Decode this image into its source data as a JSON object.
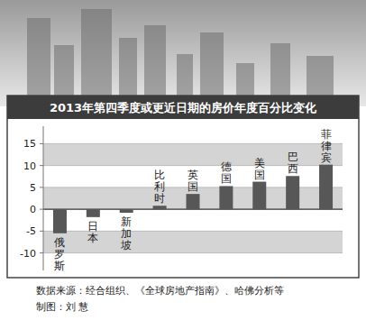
{
  "chart_data": {
    "type": "bar",
    "title": "2013年第四季度或更近日期的房价年度百分比变化",
    "categories": [
      "俄罗斯",
      "日本",
      "新加坡",
      "比利时",
      "英国",
      "德国",
      "美国",
      "巴西",
      "菲律宾"
    ],
    "values": [
      -5.5,
      -1.8,
      -0.8,
      0.8,
      3.5,
      5.3,
      6.3,
      7.6,
      10.2
    ],
    "color": "#575757",
    "ylim": [
      -14,
      19
    ],
    "yticks": [
      -10,
      -5,
      0,
      5,
      10,
      15
    ],
    "grid": true,
    "annotations": [
      "数据来源：经合组织、《全球房地产指南》、哈佛分析等",
      "制图：刘 慧"
    ]
  }
}
